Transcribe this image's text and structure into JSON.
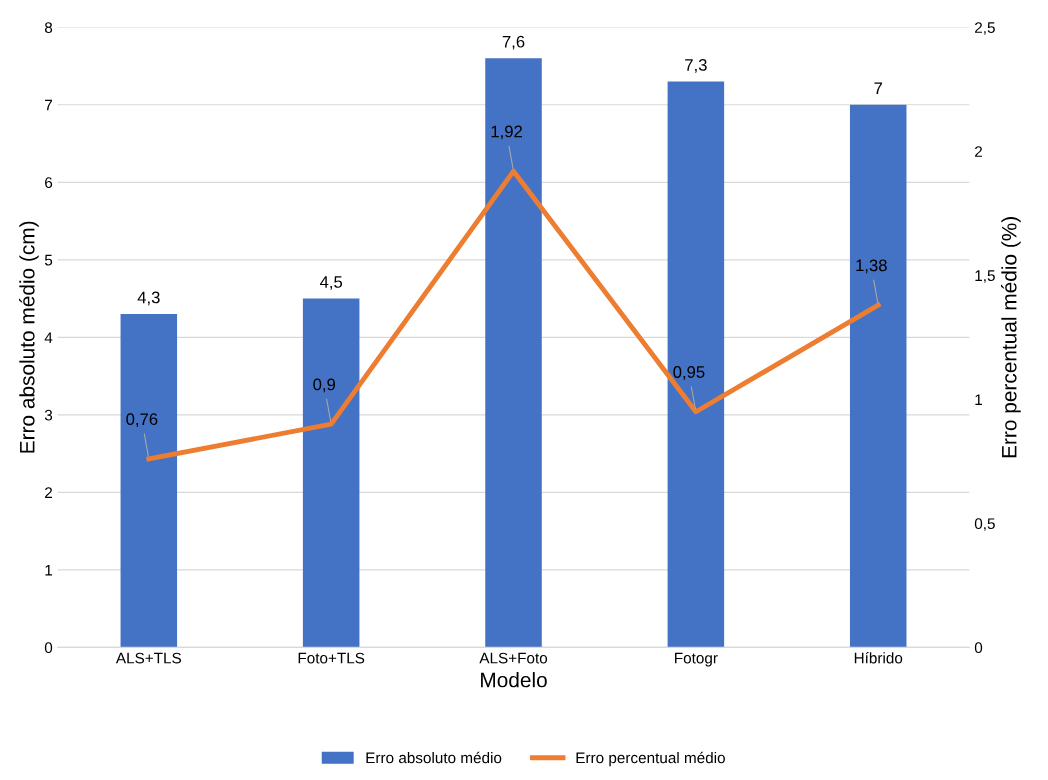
{
  "chart_data": {
    "type": "bar",
    "xlabel": "Modelo",
    "ylabel": "Erro absoluto médio (cm)",
    "y2label": "Erro percentual médio (%)",
    "categories": [
      "ALS+TLS",
      "Foto+TLS",
      "ALS+Foto",
      "Fotogr",
      "Híbrido"
    ],
    "series": [
      {
        "name": "Erro absoluto médio",
        "color": "#4472c4",
        "values": [
          4.3,
          4.5,
          7.6,
          7.3,
          7
        ],
        "value_labels": [
          "4,3",
          "4,5",
          "7,6",
          "7,3",
          "7"
        ]
      },
      {
        "name": "Erro percentual médio",
        "type": "line",
        "axis": "y2",
        "color": "#ed7d31",
        "values": [
          0.76,
          0.9,
          1.92,
          0.95,
          1.38
        ],
        "value_labels": [
          "0,76",
          "0,9",
          "1,92",
          "0,95",
          "1,38"
        ]
      }
    ],
    "ylim": [
      0,
      8
    ],
    "yticks": [
      0,
      1,
      2,
      3,
      4,
      5,
      6,
      7,
      8
    ],
    "y2lim": [
      0,
      2.5
    ],
    "y2ticks": [
      0,
      {
        "value": 0.5,
        "label": "0,5"
      },
      1,
      {
        "value": 1.5,
        "label": "1,5"
      },
      2,
      {
        "value": 2.5,
        "label": "2,5"
      }
    ],
    "grid": "y",
    "legend": "bottom",
    "marker": "none",
    "line_style": "solid"
  }
}
